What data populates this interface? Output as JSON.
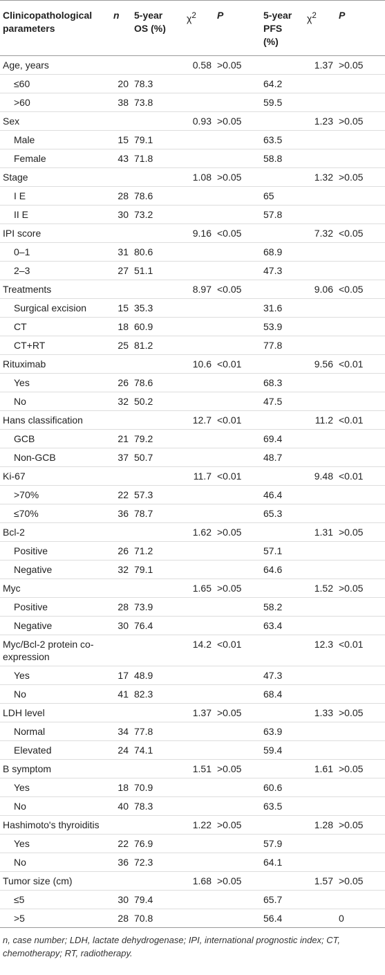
{
  "table": {
    "headers": [
      "Clinicopathological parameters",
      "n",
      "5-year OS (%)",
      {
        "text": "χ",
        "sup": "2"
      },
      "P",
      "5-year PFS (%)",
      {
        "text": "χ",
        "sup": "2"
      },
      "P"
    ],
    "rows": [
      [
        "Age, years",
        "",
        "",
        "0.58",
        ">0.05",
        "",
        "1.37",
        ">0.05"
      ],
      [
        "≤60",
        "20",
        "78.3",
        "",
        "",
        "64.2",
        "",
        ""
      ],
      [
        ">60",
        "38",
        "73.8",
        "",
        "",
        "59.5",
        "",
        ""
      ],
      [
        "Sex",
        "",
        "",
        "0.93",
        ">0.05",
        "",
        "1.23",
        ">0.05"
      ],
      [
        "Male",
        "15",
        "79.1",
        "",
        "",
        "63.5",
        "",
        ""
      ],
      [
        "Female",
        "43",
        "71.8",
        "",
        "",
        "58.8",
        "",
        ""
      ],
      [
        "Stage",
        "",
        "",
        "1.08",
        ">0.05",
        "",
        "1.32",
        ">0.05"
      ],
      [
        "I E",
        "28",
        "78.6",
        "",
        "",
        "65",
        "",
        ""
      ],
      [
        "II E",
        "30",
        "73.2",
        "",
        "",
        "57.8",
        "",
        ""
      ],
      [
        "IPI score",
        "",
        "",
        "9.16",
        "<0.05",
        "",
        "7.32",
        "<0.05"
      ],
      [
        "0–1",
        "31",
        "80.6",
        "",
        "",
        "68.9",
        "",
        ""
      ],
      [
        "2–3",
        "27",
        "51.1",
        "",
        "",
        "47.3",
        "",
        ""
      ],
      [
        "Treatments",
        "",
        "",
        "8.97",
        "<0.05",
        "",
        "9.06",
        "<0.05"
      ],
      [
        "Surgical excision",
        "15",
        "35.3",
        "",
        "",
        "31.6",
        "",
        ""
      ],
      [
        "CT",
        "18",
        "60.9",
        "",
        "",
        "53.9",
        "",
        ""
      ],
      [
        "CT+RT",
        "25",
        "81.2",
        "",
        "",
        "77.8",
        "",
        ""
      ],
      [
        "Rituximab",
        "",
        "",
        "10.6",
        "<0.01",
        "",
        "9.56",
        "<0.01"
      ],
      [
        "Yes",
        "26",
        "78.6",
        "",
        "",
        "68.3",
        "",
        ""
      ],
      [
        "No",
        "32",
        "50.2",
        "",
        "",
        "47.5",
        "",
        ""
      ],
      [
        "Hans classification",
        "",
        "",
        "12.7",
        "<0.01",
        "",
        "11.2",
        "<0.01"
      ],
      [
        "GCB",
        "21",
        "79.2",
        "",
        "",
        "69.4",
        "",
        ""
      ],
      [
        "Non-GCB",
        "37",
        "50.7",
        "",
        "",
        "48.7",
        "",
        ""
      ],
      [
        "Ki-67",
        "",
        "",
        "11.7",
        "<0.01",
        "",
        "9.48",
        "<0.01"
      ],
      [
        ">70%",
        "22",
        "57.3",
        "",
        "",
        "46.4",
        "",
        ""
      ],
      [
        "≤70%",
        "36",
        "78.7",
        "",
        "",
        "65.3",
        "",
        ""
      ],
      [
        "Bcl-2",
        "",
        "",
        "1.62",
        ">0.05",
        "",
        "1.31",
        ">0.05"
      ],
      [
        "Positive",
        "26",
        "71.2",
        "",
        "",
        "57.1",
        "",
        ""
      ],
      [
        "Negative",
        "32",
        "79.1",
        "",
        "",
        "64.6",
        "",
        ""
      ],
      [
        "Myc",
        "",
        "",
        "1.65",
        ">0.05",
        "",
        "1.52",
        ">0.05"
      ],
      [
        "Positive",
        "28",
        "73.9",
        "",
        "",
        "58.2",
        "",
        ""
      ],
      [
        "Negative",
        "30",
        "76.4",
        "",
        "",
        "63.4",
        "",
        ""
      ],
      [
        "Myc/Bcl-2 protein co-expression",
        "",
        "",
        "14.2",
        "<0.01",
        "",
        "12.3",
        "<0.01"
      ],
      [
        "Yes",
        "17",
        "48.9",
        "",
        "",
        "47.3",
        "",
        ""
      ],
      [
        "No",
        "41",
        "82.3",
        "",
        "",
        "68.4",
        "",
        ""
      ],
      [
        "LDH level",
        "",
        "",
        "1.37",
        ">0.05",
        "",
        "1.33",
        ">0.05"
      ],
      [
        "Normal",
        "34",
        "77.8",
        "",
        "",
        "63.9",
        "",
        ""
      ],
      [
        "Elevated",
        "24",
        "74.1",
        "",
        "",
        "59.4",
        "",
        ""
      ],
      [
        "B symptom",
        "",
        "",
        "1.51",
        ">0.05",
        "",
        "1.61",
        ">0.05"
      ],
      [
        "Yes",
        "18",
        "70.9",
        "",
        "",
        "60.6",
        "",
        ""
      ],
      [
        "No",
        "40",
        "78.3",
        "",
        "",
        "63.5",
        "",
        ""
      ],
      [
        "Hashimoto's thyroiditis",
        "",
        "",
        "1.22",
        ">0.05",
        "",
        "1.28",
        ">0.05"
      ],
      [
        "Yes",
        "22",
        "76.9",
        "",
        "",
        "57.9",
        "",
        ""
      ],
      [
        "No",
        "36",
        "72.3",
        "",
        "",
        "64.1",
        "",
        ""
      ],
      [
        "Tumor size (cm)",
        "",
        "",
        "1.68",
        ">0.05",
        "",
        "1.57",
        ">0.05"
      ],
      [
        "≤5",
        "30",
        "79.4",
        "",
        "",
        "65.7",
        "",
        ""
      ],
      [
        ">5",
        "28",
        "70.8",
        "",
        "",
        "56.4",
        "",
        "0"
      ]
    ]
  },
  "footnote": "n, case number; LDH, lactate dehydrogenase; IPI, international prognostic index; CT, chemotherapy; RT, radiotherapy."
}
